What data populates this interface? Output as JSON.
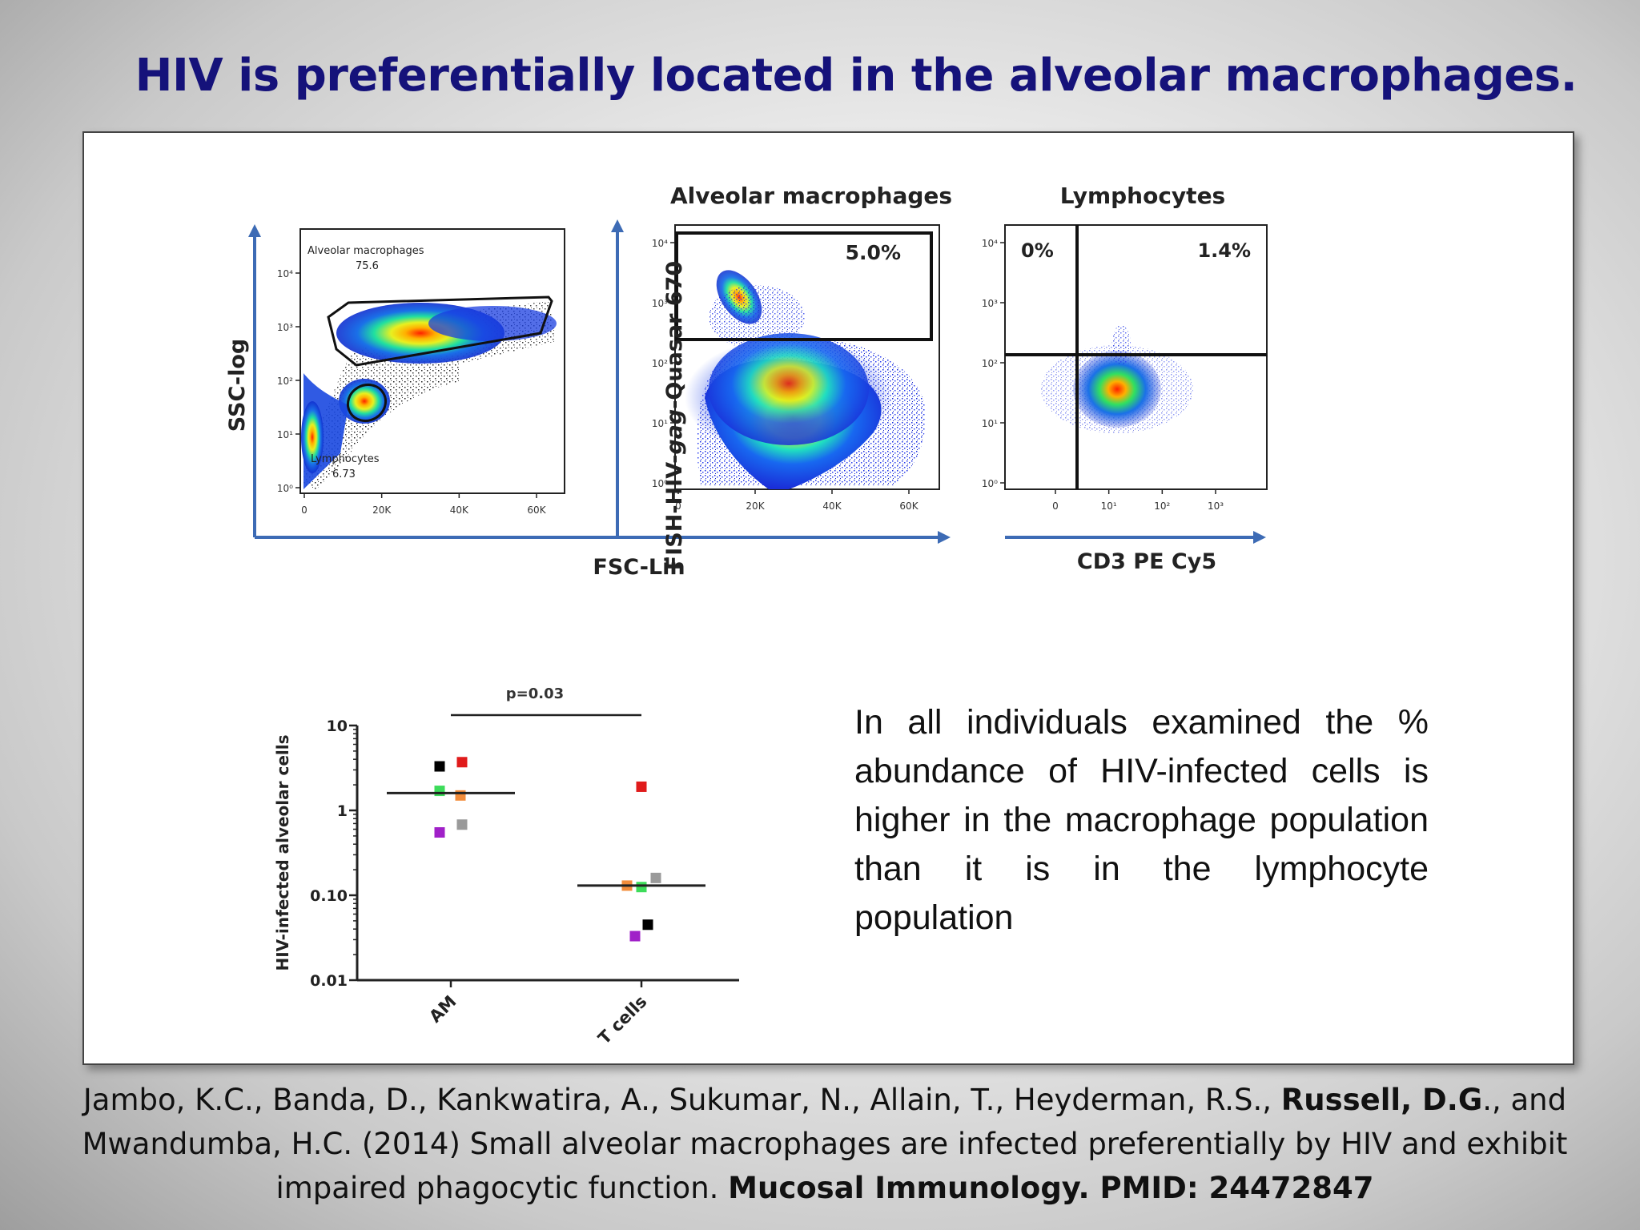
{
  "slide": {
    "title": "HIV is preferentially located in the alveolar macrophages."
  },
  "flow_panels": {
    "panel1": {
      "y_axis_label": "SSC-log",
      "gate_top_label": "Alveolar macrophages",
      "gate_top_value": "75.6",
      "gate_bottom_label": "Lymphocytes",
      "gate_bottom_value": "6.73",
      "y_ticks": [
        "10⁴",
        "10³",
        "10²",
        "10¹",
        "10⁰"
      ],
      "x_ticks": [
        "0",
        "20K",
        "40K",
        "60K"
      ]
    },
    "panel2": {
      "title": "Alveolar macrophages",
      "y_axis_label": "FISH-HIV-gag-Quasar 670",
      "y_axis_label_parts": [
        "FISH-HIV-",
        "gag",
        "-Quasar 670"
      ],
      "gate_percent": "5.0%",
      "y_ticks": [
        "10⁴",
        "10³",
        "10²",
        "10¹",
        "10⁰"
      ],
      "x_ticks": [
        "0",
        "20K",
        "40K",
        "60K"
      ]
    },
    "shared_x_axis_label": "FSC-Lin",
    "panel3": {
      "title": "Lymphocytes",
      "x_axis_label": "CD3 PE Cy5",
      "quadrant_upper_left": "0%",
      "quadrant_upper_right": "1.4%",
      "y_ticks": [
        "10⁴",
        "10³",
        "10²",
        "10¹",
        "10⁰"
      ],
      "x_ticks": [
        "0",
        "10¹",
        "10²",
        "10³"
      ]
    }
  },
  "chart_data": {
    "type": "scatter",
    "ylabel": "HIV-infected alveolar cells",
    "yscale": "log",
    "ylim": [
      0.01,
      10
    ],
    "y_ticks": [
      "10",
      "1",
      "0.10",
      "0.01"
    ],
    "categories": [
      "AM",
      "T cells"
    ],
    "significance": "p=0.03",
    "points": [
      {
        "category": "AM",
        "value": 3.3,
        "color": "#000000"
      },
      {
        "category": "AM",
        "value": 3.7,
        "color": "#e01b1b"
      },
      {
        "category": "AM",
        "value": 1.7,
        "color": "#3ddc5a"
      },
      {
        "category": "AM",
        "value": 1.5,
        "color": "#f28c3a"
      },
      {
        "category": "AM",
        "value": 0.68,
        "color": "#9a9a9a"
      },
      {
        "category": "AM",
        "value": 0.55,
        "color": "#a020c8"
      },
      {
        "category": "T cells",
        "value": 1.9,
        "color": "#e01b1b"
      },
      {
        "category": "T cells",
        "value": 0.16,
        "color": "#9a9a9a"
      },
      {
        "category": "T cells",
        "value": 0.13,
        "color": "#f28c3a"
      },
      {
        "category": "T cells",
        "value": 0.125,
        "color": "#3ddc5a"
      },
      {
        "category": "T cells",
        "value": 0.045,
        "color": "#000000"
      },
      {
        "category": "T cells",
        "value": 0.033,
        "color": "#a020c8"
      }
    ],
    "medians": [
      {
        "category": "AM",
        "value": 1.6
      },
      {
        "category": "T cells",
        "value": 0.13
      }
    ]
  },
  "body_text": "In all individuals examined the % abundance of HIV-infected cells is higher in the macrophage population than it is in the lymphocyte population",
  "citation": {
    "part1": "Jambo, K.C., Banda, D., Kankwatira, A., Sukumar, N., Allain, T., Heyderman, R.S., ",
    "bold_author": "Russell, D.G",
    "part2": "., and Mwandumba, H.C. (2014) Small alveolar macrophages are infected preferentially by HIV and exhibit impaired phagocytic function.  ",
    "journal": "Mucosal Immunology. PMID: 24472847"
  }
}
